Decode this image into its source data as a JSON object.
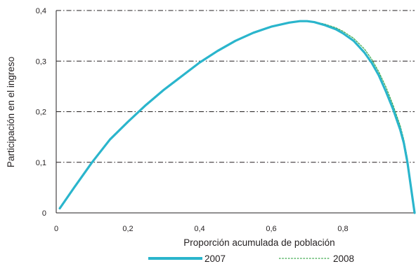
{
  "chart_data": {
    "type": "line",
    "xlabel": "Proporción acumulada de población",
    "ylabel": "Participación en el ingreso",
    "xlim": [
      0,
      1
    ],
    "ylim": [
      0,
      0.4
    ],
    "x_ticks": [
      {
        "value": 0,
        "label": "0"
      },
      {
        "value": 0.2,
        "label": "0,2"
      },
      {
        "value": 0.4,
        "label": "0,4"
      },
      {
        "value": 0.6,
        "label": "0,6"
      },
      {
        "value": 0.8,
        "label": "0,8"
      }
    ],
    "y_ticks": [
      {
        "value": 0,
        "label": "0"
      },
      {
        "value": 0.1,
        "label": "0,1"
      },
      {
        "value": 0.2,
        "label": "0,2"
      },
      {
        "value": 0.3,
        "label": "0,3"
      },
      {
        "value": 0.4,
        "label": "0,4"
      }
    ],
    "grid": "horizontal dash-dot",
    "legend_position": "bottom",
    "series": [
      {
        "name": "2007",
        "color": "#2ab5cc",
        "style": "solid",
        "x": [
          0.01,
          0.05,
          0.1,
          0.15,
          0.2,
          0.25,
          0.3,
          0.35,
          0.4,
          0.45,
          0.5,
          0.55,
          0.6,
          0.65,
          0.68,
          0.7,
          0.72,
          0.75,
          0.78,
          0.8,
          0.83,
          0.86,
          0.88,
          0.9,
          0.92,
          0.94,
          0.96,
          0.97,
          0.98,
          0.99,
          1.0
        ],
        "y": [
          0.009,
          0.05,
          0.1,
          0.145,
          0.18,
          0.213,
          0.243,
          0.27,
          0.297,
          0.32,
          0.34,
          0.356,
          0.368,
          0.376,
          0.379,
          0.379,
          0.377,
          0.371,
          0.363,
          0.355,
          0.34,
          0.317,
          0.297,
          0.272,
          0.24,
          0.205,
          0.164,
          0.138,
          0.1,
          0.05,
          0.0
        ]
      },
      {
        "name": "2008",
        "color": "#3aa84a",
        "style": "dashed",
        "x": [
          0.01,
          0.05,
          0.1,
          0.15,
          0.2,
          0.25,
          0.3,
          0.35,
          0.4,
          0.45,
          0.5,
          0.55,
          0.6,
          0.65,
          0.68,
          0.7,
          0.72,
          0.75,
          0.78,
          0.8,
          0.83,
          0.86,
          0.88,
          0.9,
          0.92,
          0.94,
          0.96,
          0.97,
          0.98,
          0.99,
          1.0
        ],
        "y": [
          0.009,
          0.05,
          0.1,
          0.145,
          0.18,
          0.213,
          0.243,
          0.27,
          0.297,
          0.32,
          0.34,
          0.356,
          0.368,
          0.376,
          0.379,
          0.379,
          0.378,
          0.373,
          0.366,
          0.359,
          0.345,
          0.324,
          0.304,
          0.279,
          0.249,
          0.213,
          0.172,
          0.145,
          0.108,
          0.056,
          0.0
        ]
      }
    ]
  }
}
